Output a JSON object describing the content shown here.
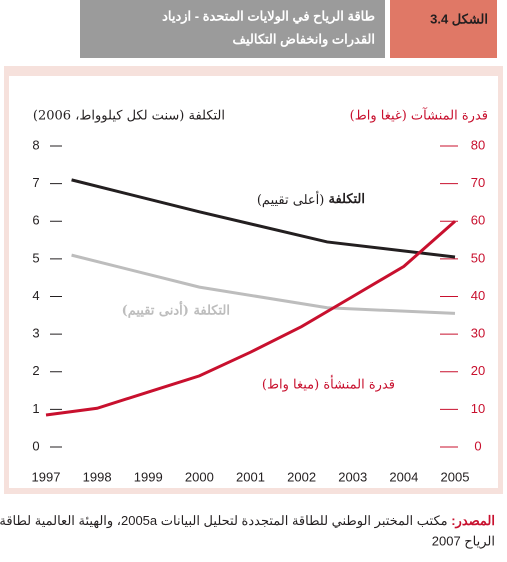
{
  "header": {
    "figure_label": "الشكل 3.4",
    "title_lines": [
      "طاقة الرياح في الولايات المتحدة - ازدياد",
      "القدرات وانخفاض التكاليف"
    ]
  },
  "chart_data": {
    "type": "line",
    "y_label": "التكلفة (سنت لكل كيلوواط، 2006)",
    "y2_label": "قدرة المنشآت (غيغا واط)",
    "xlim": [
      1997,
      2005
    ],
    "xticks": [
      1997,
      1998,
      1999,
      2000,
      2001,
      2002,
      2003,
      2004,
      2005
    ],
    "ylim": [
      0,
      8
    ],
    "yticks": [
      0,
      1,
      2,
      3,
      4,
      5,
      6,
      7,
      8
    ],
    "y2lim": [
      0,
      80
    ],
    "y2ticks": [
      0,
      10,
      20,
      30,
      40,
      50,
      60,
      70,
      80
    ],
    "series": [
      {
        "color": "#231f20",
        "x": [
          1997.5,
          2000,
          2002.5,
          2005
        ],
        "values": [
          7.1,
          6.25,
          5.45,
          5.05
        ]
      },
      {
        "name": "التكلفة (أدنى تقييم)",
        "color": "#bdbdbd",
        "x": [
          1997.5,
          2000,
          2002.5,
          2005
        ],
        "values": [
          5.1,
          4.25,
          3.7,
          3.55
        ]
      },
      {
        "name": "قدرة المنشأة (ميغا واط)",
        "color": "#c8102e",
        "axis": "y2",
        "x": [
          1997,
          1998,
          1999,
          2000,
          2001,
          2002,
          2003,
          2004,
          2005
        ],
        "values": [
          8.5,
          10.3,
          14.6,
          18.9,
          25.2,
          32,
          40,
          48,
          60
        ]
      }
    ],
    "annotations": [
      {
        "bold": "التكلفة",
        "text": " (أعلى تقييم)"
      }
    ]
  },
  "source": {
    "label": "المصدر: ",
    "lines": [
      "مكتب المختبر الوطني للطاقة المتجددة لتحليل البيانات 2005a، والهيئة العالمية لطاقة",
      "الرياح 2007"
    ]
  }
}
